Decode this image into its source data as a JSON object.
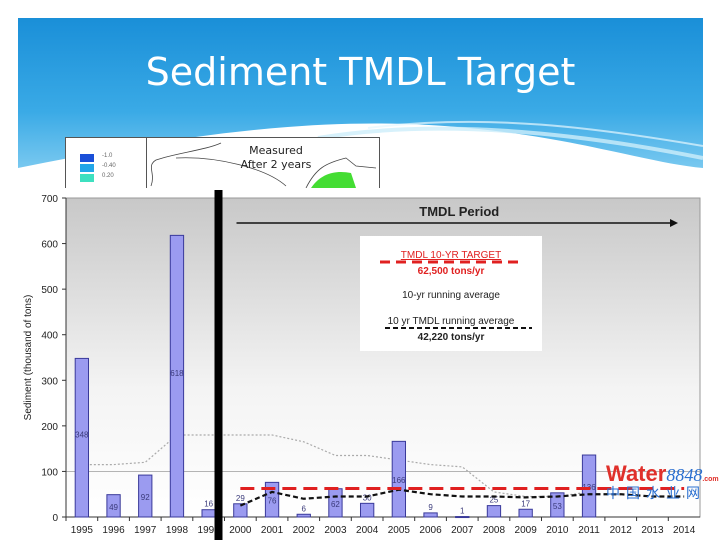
{
  "slide": {
    "title": "Sediment TMDL Target"
  },
  "inset": {
    "caption_line1": "Measured",
    "caption_line2": "After 2 years",
    "legend": [
      {
        "label": "-1.0",
        "color": "#1a4fd8"
      },
      {
        "label": "-0.40",
        "color": "#22a6e8"
      },
      {
        "label": "0.20",
        "color": "#3ee0c0"
      }
    ]
  },
  "watermark": {
    "brand": "Water",
    "number": "8848",
    "suffix": ".com",
    "chinese": "中国水业网"
  },
  "chart_data": {
    "type": "bar",
    "ylabel": "Sediment (thousand of tons)",
    "xlabel": "",
    "ylim": [
      0,
      700
    ],
    "yticks": [
      0,
      100,
      200,
      300,
      400,
      500,
      600,
      700
    ],
    "grid": "horizontal at 100",
    "categories": [
      "1995",
      "1996",
      "1997",
      "1998",
      "1999",
      "2000",
      "2001",
      "2002",
      "2003",
      "2004",
      "2005",
      "2006",
      "2007",
      "2008",
      "2009",
      "2010",
      "2011",
      "2012",
      "2013",
      "2014"
    ],
    "values": [
      348,
      49,
      92,
      618,
      16,
      29,
      76,
      6,
      62,
      30,
      166,
      9,
      1,
      25,
      17,
      53,
      136,
      null,
      null,
      null
    ],
    "data_labels": [
      "348",
      "49",
      "92",
      "618",
      "16",
      "29",
      "76",
      "6",
      "62",
      "30",
      "166",
      "9",
      "1",
      "25",
      "17",
      "53",
      "136",
      "",
      "",
      ""
    ],
    "bar_color": "#9b9bf0",
    "period_annotation": "TMDL  Period",
    "period_start": "2000",
    "lines": [
      {
        "name": "10-yr running average",
        "style": "gray dotted",
        "color": "#aaaaaa",
        "values": [
          115,
          115,
          120,
          180,
          180,
          180,
          180,
          165,
          135,
          135,
          125,
          115,
          110,
          55,
          45,
          45,
          55,
          null,
          null,
          null
        ]
      },
      {
        "name": "10 yr TMDL running average",
        "style": "black dashed",
        "color": "#111111",
        "values": [
          null,
          null,
          null,
          null,
          null,
          25,
          55,
          40,
          45,
          45,
          60,
          50,
          45,
          45,
          43,
          45,
          50,
          50,
          45,
          45
        ]
      },
      {
        "name": "TMDL 10-YR TARGET",
        "style": "red dashed",
        "color": "#e02020",
        "values": [
          null,
          null,
          null,
          null,
          null,
          62.5,
          62.5,
          62.5,
          62.5,
          62.5,
          62.5,
          62.5,
          62.5,
          62.5,
          62.5,
          62.5,
          62.5,
          62.5,
          62.5,
          62.5
        ]
      }
    ],
    "legend": {
      "placement": "top-center",
      "target_label": "TMDL 10-YR TARGET",
      "target_value": "62,500 tons/yr",
      "running_label": "10-yr running average",
      "tmdl_running_label": "10 yr TMDL running average",
      "tmdl_running_value": "42,220 tons/yr"
    }
  }
}
